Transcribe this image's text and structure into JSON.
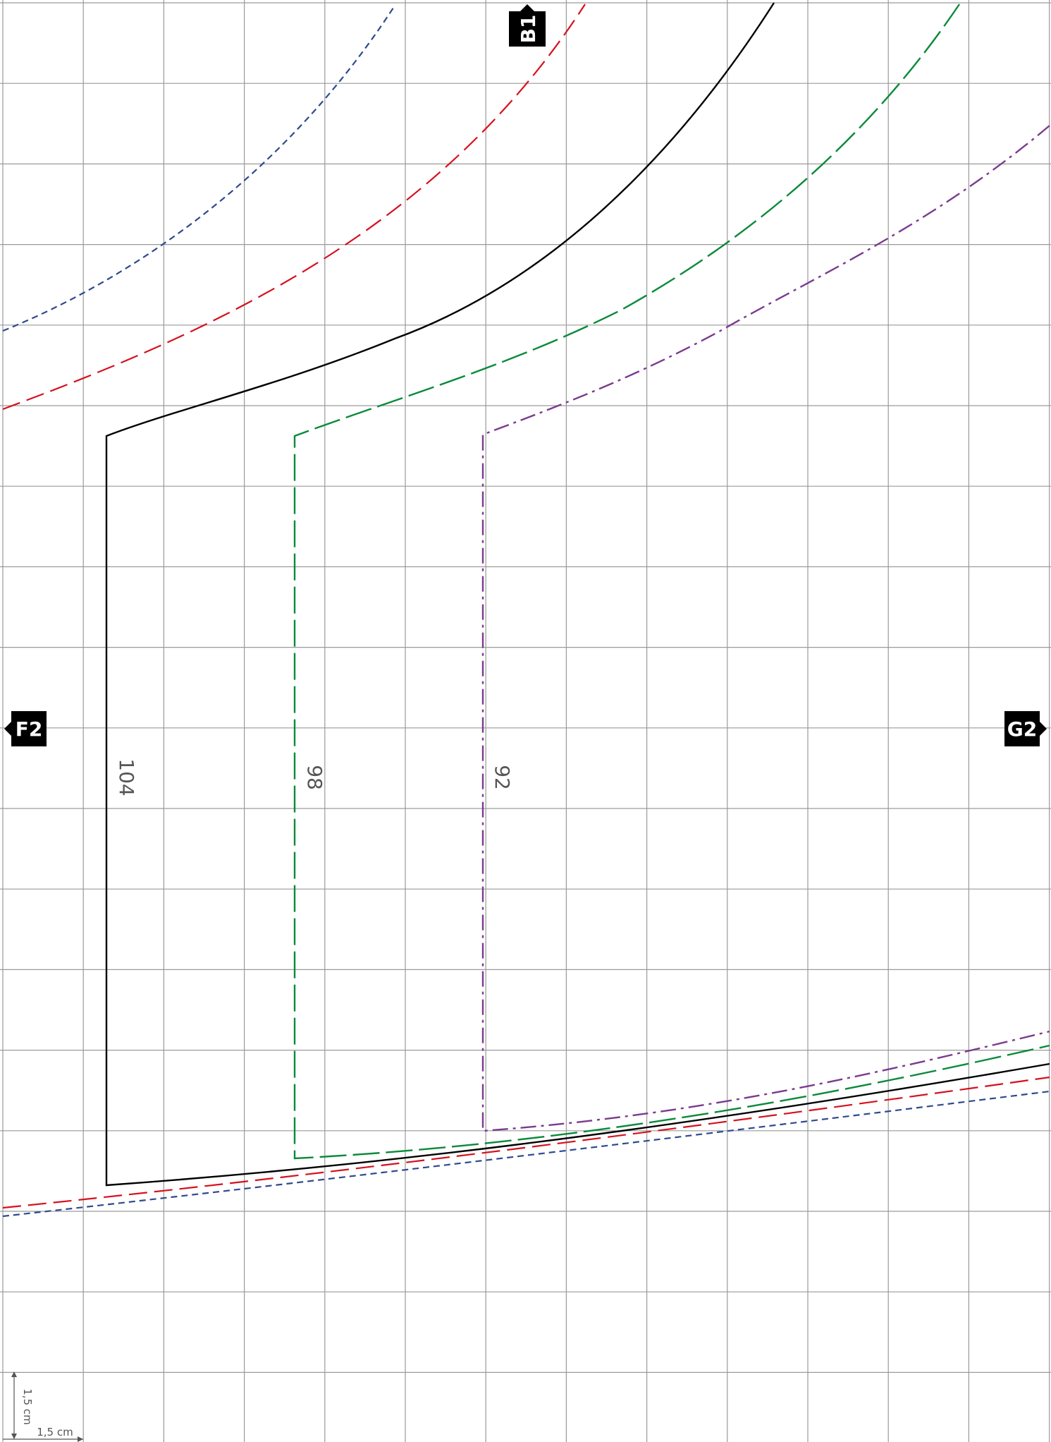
{
  "markers": {
    "top": "B1",
    "left": "F2",
    "right": "G2"
  },
  "size_labels": {
    "s104": "104",
    "s98": "98",
    "s92": "92"
  },
  "scale": {
    "horizontal": "1,5 cm",
    "vertical": "1,5 cm"
  },
  "colors": {
    "size_104": "#000000",
    "size_98": "#0a8a3a",
    "size_92": "#7b3a8f",
    "red_size": "#d6111e",
    "blue_size": "#2e4a8f",
    "grid": "#9a9a9a",
    "marker_bg": "#000000"
  }
}
